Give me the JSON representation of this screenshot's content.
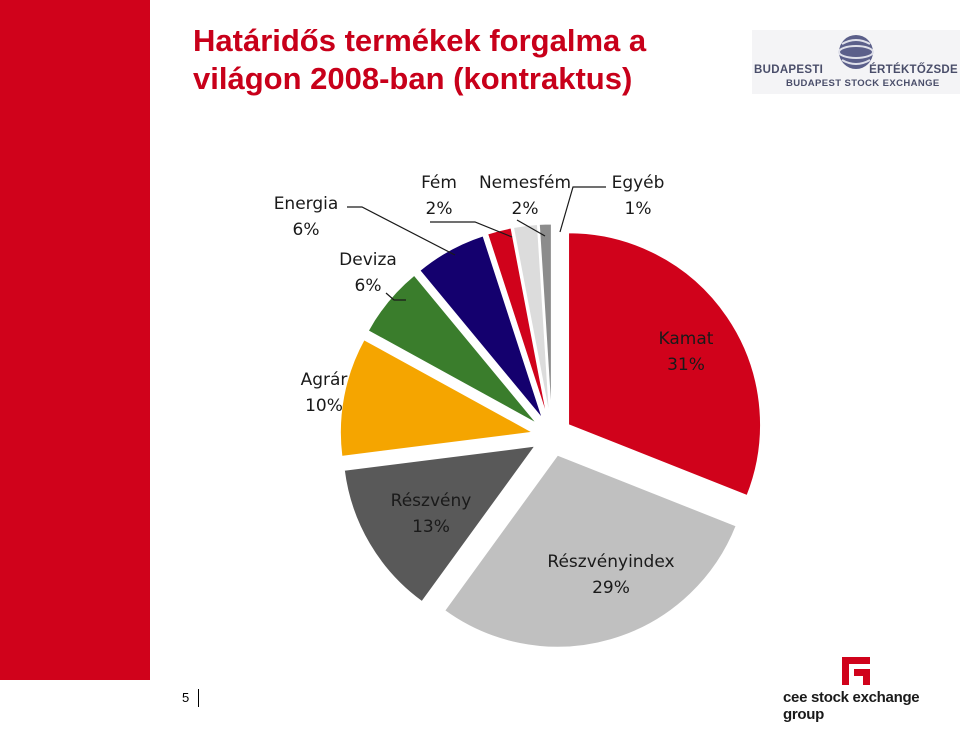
{
  "slide": {
    "title_line1": "Határidős termékek forgalma a",
    "title_line2": "világon 2008-ban (kontraktus)",
    "page_number": "5"
  },
  "logos": {
    "bse_name_left": "BUDAPESTI",
    "bse_name_right": "ÉRTÉKTŐZSDE",
    "bse_subtitle": "BUDAPEST STOCK EXCHANGE",
    "cee_group": "cee stock exchange group"
  },
  "colors": {
    "brand_red": "#d0021b",
    "title_red": "#c8001a"
  },
  "chart_data": {
    "type": "pie",
    "title": "",
    "slices": [
      {
        "name": "Kamat",
        "value": 31,
        "label": "31%",
        "color": "#d0021b"
      },
      {
        "name": "Részvényindex",
        "value": 29,
        "label": "29%",
        "color": "#c0c0c0"
      },
      {
        "name": "Részvény",
        "value": 13,
        "label": "13%",
        "color": "#595959"
      },
      {
        "name": "Agrár",
        "value": 10,
        "label": "10%",
        "color": "#f5a500"
      },
      {
        "name": "Deviza",
        "value": 6,
        "label": "6%",
        "color": "#3a7d2c"
      },
      {
        "name": "Energia",
        "value": 6,
        "label": "6%",
        "color": "#14006e"
      },
      {
        "name": "Fém",
        "value": 2,
        "label": "2%",
        "color": "#d0021b"
      },
      {
        "name": "Nemesfém",
        "value": 2,
        "label": "2%",
        "color": "#dcdcdc"
      },
      {
        "name": "Egyéb",
        "value": 1,
        "label": "1%",
        "color": "#8c8c8c"
      }
    ],
    "start_angle": "top, clockwise",
    "exploded": true,
    "legend": "none (data labels beside slices)"
  }
}
